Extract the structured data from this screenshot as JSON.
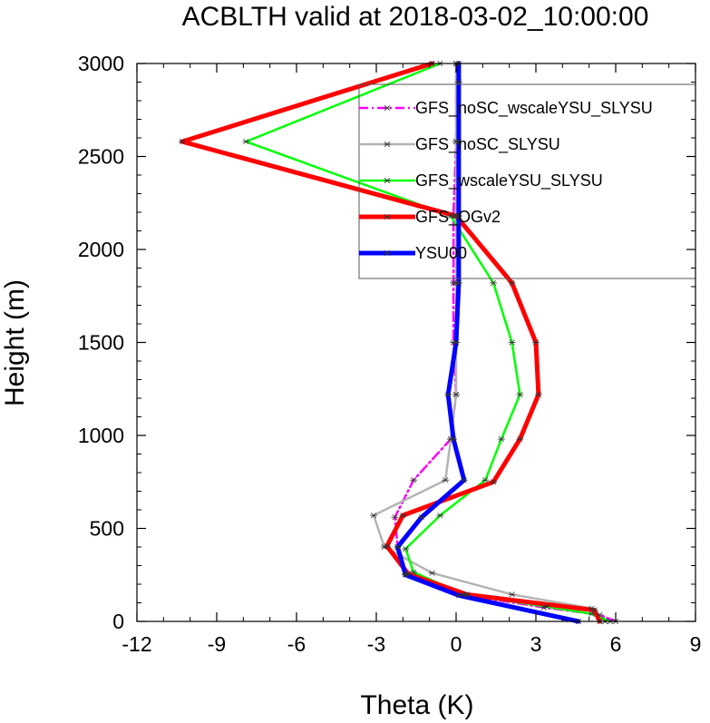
{
  "chart_data": {
    "type": "line",
    "title": "ACBLTH valid at 2018-03-02_10:00:00",
    "xlabel": "Theta (K)",
    "ylabel": "Height (m)",
    "xlim": [
      -12,
      9
    ],
    "ylim": [
      0,
      3000
    ],
    "xticks": [
      -12,
      -9,
      -6,
      -3,
      0,
      3,
      6,
      9
    ],
    "yticks": [
      0,
      500,
      1000,
      1500,
      2000,
      2500,
      3000
    ],
    "xtick_labels": [
      "-12",
      "-9",
      "-6",
      "-3",
      "0",
      "3",
      "6",
      "9"
    ],
    "ytick_labels": [
      "0",
      "500",
      "1000",
      "1500",
      "2000",
      "2500",
      "3000"
    ],
    "grid": false,
    "legend_position": "top-right",
    "series": [
      {
        "name": "GFS_noSC_wscaleYSU_SLYSU",
        "color": "#ff00ff",
        "width": 2.5,
        "dash": "10,4,2,4",
        "x": [
          6.0,
          5.4,
          3.3,
          0.4,
          -1.9,
          -2.2,
          -2.3,
          -1.6,
          -0.2,
          0.0,
          -0.1,
          -0.1,
          -0.1,
          0.0,
          0.0,
          0.0
        ],
        "y": [
          0,
          35,
          75,
          140,
          255,
          400,
          560,
          760,
          980,
          1220,
          1500,
          1820,
          2180,
          2580,
          3000,
          3000
        ]
      },
      {
        "name": "GFS_noSC_SLYSU",
        "color": "#b4b4b4",
        "width": 2.5,
        "dash": "",
        "x": [
          5.6,
          5.1,
          2.1,
          -0.9,
          -2.7,
          -3.1,
          -0.4,
          -0.2,
          0.0,
          0.0,
          0.0,
          0.0,
          0.0,
          0.0
        ],
        "y": [
          0,
          70,
          145,
          260,
          400,
          570,
          760,
          980,
          1220,
          1500,
          1820,
          2180,
          2580,
          3000
        ]
      },
      {
        "name": "GFS_wscaleYSU_SLYSU",
        "color": "#00ff00",
        "width": 2.5,
        "dash": "",
        "x": [
          5.8,
          5.1,
          3.4,
          0.3,
          -1.6,
          -1.9,
          -0.6,
          1.1,
          1.7,
          2.4,
          2.1,
          1.4,
          -0.2,
          -7.9,
          -0.6
        ],
        "y": [
          0,
          40,
          80,
          145,
          265,
          390,
          570,
          760,
          980,
          1220,
          1500,
          1820,
          2180,
          2580,
          3000
        ]
      },
      {
        "name": "GFS_OGv2",
        "color": "#ff0000",
        "width": 5,
        "dash": "",
        "x": [
          5.4,
          5.2,
          0.4,
          -1.8,
          -2.6,
          -2.0,
          1.4,
          2.4,
          3.1,
          3.0,
          2.1,
          0.0,
          -10.3,
          -0.9
        ],
        "y": [
          0,
          60,
          145,
          255,
          405,
          570,
          750,
          980,
          1220,
          1500,
          1820,
          2180,
          2580,
          3000
        ]
      },
      {
        "name": "YSU00",
        "color": "#0000ff",
        "width": 5,
        "dash": "",
        "x": [
          4.6,
          0.1,
          -1.9,
          -2.2,
          -1.3,
          0.3,
          -0.1,
          -0.3,
          0.0,
          0.1,
          0.1,
          0.1,
          0.1,
          0.1
        ],
        "y": [
          0,
          140,
          250,
          400,
          560,
          760,
          980,
          1220,
          1500,
          1820,
          2180,
          2580,
          2900,
          3000
        ]
      }
    ]
  }
}
